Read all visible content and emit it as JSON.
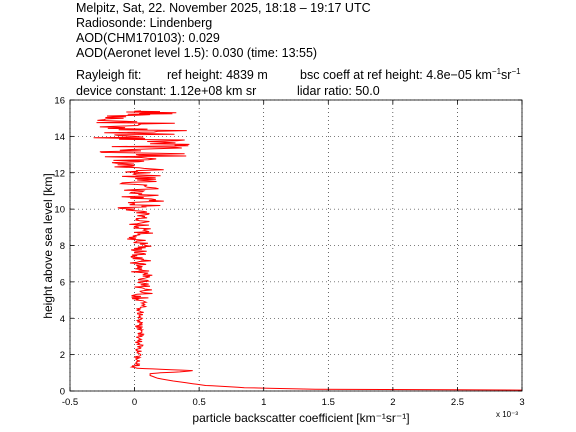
{
  "header": {
    "line1": "Melpitz, Sat, 22. November 2025, 18:18 – 19:17 UTC",
    "line2": "Radiosonde: Lindenberg",
    "line3": "AOD(CHM170103): 0.029",
    "line4": "AOD(Aeronet level 1.5): 0.030   (time: 13:55)",
    "rayleigh_label": "Rayleigh fit:",
    "ref_height": "ref height: 4839 m",
    "bsc_coeff_prefix": "bsc coeff at ref height: 4.8e−05 km",
    "bsc_unit_exp1": "−1",
    "bsc_unit_mid": "sr",
    "bsc_unit_exp2": "−1",
    "device_constant": "device constant: 1.12e+08 km sr",
    "lidar_ratio": "lidar ratio: 50.0"
  },
  "chart_data": {
    "type": "line",
    "xlabel": "particle backscatter coefficient [km⁻¹sr⁻¹]",
    "ylabel": "height above sea level [km]",
    "x_multiplier": "x 10⁻³",
    "xlim": [
      -0.5,
      3
    ],
    "ylim": [
      0,
      16
    ],
    "x_ticks": [
      "-0.5",
      "0",
      "0.5",
      "1",
      "1.5",
      "2",
      "2.5",
      "3"
    ],
    "y_ticks": [
      "0",
      "2",
      "4",
      "6",
      "8",
      "10",
      "12",
      "14",
      "16"
    ],
    "grid": true,
    "line_color": "#ff0000",
    "series": [
      {
        "x_unit": "1e-3 km^-1 sr^-1",
        "points": [
          [
            3.0,
            0.05
          ],
          [
            1.4,
            0.1
          ],
          [
            0.85,
            0.18
          ],
          [
            0.7,
            0.25
          ],
          [
            0.55,
            0.3
          ],
          [
            0.45,
            0.4
          ],
          [
            0.3,
            0.55
          ],
          [
            0.18,
            0.7
          ],
          [
            0.12,
            0.85
          ],
          [
            0.12,
            0.95
          ],
          [
            0.2,
            1.0
          ],
          [
            0.35,
            1.05
          ],
          [
            0.45,
            1.12
          ],
          [
            0.2,
            1.2
          ],
          [
            0.02,
            1.25
          ],
          [
            0.0,
            1.3
          ],
          [
            0.02,
            1.5
          ],
          [
            0.03,
            1.8
          ],
          [
            0.02,
            2.1
          ],
          [
            0.04,
            2.4
          ],
          [
            0.03,
            2.8
          ],
          [
            0.05,
            3.2
          ],
          [
            0.03,
            3.6
          ],
          [
            0.06,
            4.0
          ],
          [
            0.04,
            4.4
          ],
          [
            0.07,
            4.8
          ],
          [
            0.05,
            5.2
          ],
          [
            0.08,
            5.6
          ],
          [
            0.04,
            6.0
          ],
          [
            0.07,
            6.4
          ],
          [
            0.02,
            6.8
          ],
          [
            0.06,
            7.2
          ],
          [
            0.0,
            7.6
          ],
          [
            0.08,
            8.0
          ],
          [
            0.01,
            8.4
          ],
          [
            0.09,
            8.8
          ],
          [
            0.02,
            9.2
          ],
          [
            0.08,
            9.6
          ],
          [
            0.0,
            10.0
          ],
          [
            0.1,
            10.4
          ],
          [
            0.03,
            10.8
          ],
          [
            0.1,
            11.2
          ],
          [
            0.02,
            11.6
          ],
          [
            0.12,
            12.0
          ],
          [
            0.0,
            12.4
          ],
          [
            0.1,
            12.8
          ],
          [
            0.05,
            13.2
          ],
          [
            0.12,
            13.6
          ],
          [
            0.0,
            14.0
          ],
          [
            0.1,
            14.4
          ],
          [
            0.02,
            14.8
          ],
          [
            0.12,
            15.2
          ],
          [
            0.05,
            15.4
          ]
        ]
      }
    ]
  }
}
